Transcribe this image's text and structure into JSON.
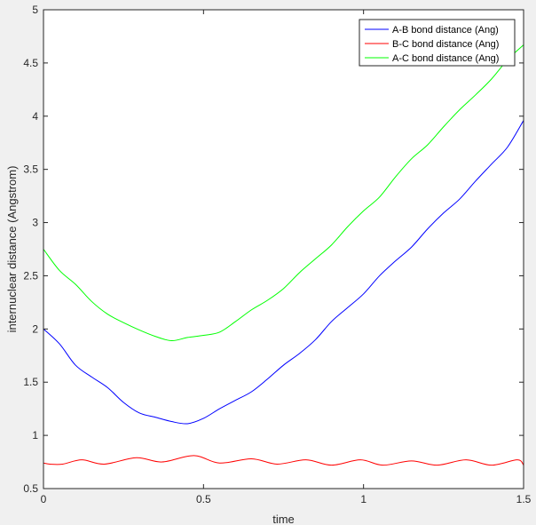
{
  "chart_data": {
    "type": "line",
    "title": "",
    "xlabel": "time",
    "ylabel": "internuclear distance (Angstrom)",
    "xlim": [
      0,
      1.5
    ],
    "ylim": [
      0.5,
      5
    ],
    "xticks": [
      0,
      0.5,
      1,
      1.5
    ],
    "xtick_labels": [
      "0",
      "0.5",
      "1",
      "1.5"
    ],
    "yticks": [
      0.5,
      1,
      1.5,
      2,
      2.5,
      3,
      3.5,
      4,
      4.5,
      5
    ],
    "ytick_labels": [
      "0.5",
      "1",
      "1.5",
      "2",
      "2.5",
      "3",
      "3.5",
      "4",
      "4.5",
      "5"
    ],
    "grid": false,
    "legend_position": "top-right",
    "series": [
      {
        "name": "A-B bond distance (Ang)",
        "color": "#0000ff",
        "x": [
          0,
          0.05,
          0.1,
          0.15,
          0.2,
          0.25,
          0.3,
          0.35,
          0.4,
          0.45,
          0.5,
          0.55,
          0.6,
          0.65,
          0.7,
          0.75,
          0.8,
          0.85,
          0.9,
          0.95,
          1.0,
          1.05,
          1.1,
          1.15,
          1.2,
          1.25,
          1.3,
          1.35,
          1.4,
          1.45,
          1.5
        ],
        "y": [
          2.0,
          1.86,
          1.66,
          1.55,
          1.45,
          1.31,
          1.21,
          1.17,
          1.13,
          1.11,
          1.16,
          1.25,
          1.33,
          1.41,
          1.53,
          1.66,
          1.77,
          1.9,
          2.07,
          2.2,
          2.33,
          2.5,
          2.64,
          2.77,
          2.94,
          3.09,
          3.22,
          3.39,
          3.55,
          3.71,
          3.96
        ]
      },
      {
        "name": "B-C bond distance (Ang)",
        "color": "#ff0000",
        "x": [
          0,
          0.02,
          0.06,
          0.12,
          0.19,
          0.29,
          0.37,
          0.47,
          0.55,
          0.65,
          0.73,
          0.82,
          0.9,
          0.99,
          1.06,
          1.15,
          1.23,
          1.32,
          1.4,
          1.48,
          1.5
        ],
        "y": [
          0.74,
          0.73,
          0.73,
          0.77,
          0.73,
          0.79,
          0.75,
          0.81,
          0.74,
          0.78,
          0.73,
          0.77,
          0.72,
          0.77,
          0.72,
          0.76,
          0.72,
          0.77,
          0.72,
          0.77,
          0.72
        ]
      },
      {
        "name": "A-C bond distance (Ang)",
        "color": "#00ff00",
        "x": [
          0,
          0.05,
          0.1,
          0.15,
          0.2,
          0.25,
          0.3,
          0.35,
          0.4,
          0.45,
          0.5,
          0.55,
          0.6,
          0.65,
          0.7,
          0.75,
          0.8,
          0.85,
          0.9,
          0.95,
          1.0,
          1.05,
          1.1,
          1.15,
          1.2,
          1.25,
          1.3,
          1.35,
          1.4,
          1.45,
          1.5
        ],
        "y": [
          2.75,
          2.55,
          2.42,
          2.26,
          2.14,
          2.06,
          1.99,
          1.93,
          1.89,
          1.92,
          1.94,
          1.97,
          2.07,
          2.18,
          2.27,
          2.38,
          2.53,
          2.66,
          2.79,
          2.96,
          3.11,
          3.24,
          3.43,
          3.6,
          3.73,
          3.9,
          4.06,
          4.2,
          4.35,
          4.53,
          4.67
        ]
      }
    ]
  }
}
